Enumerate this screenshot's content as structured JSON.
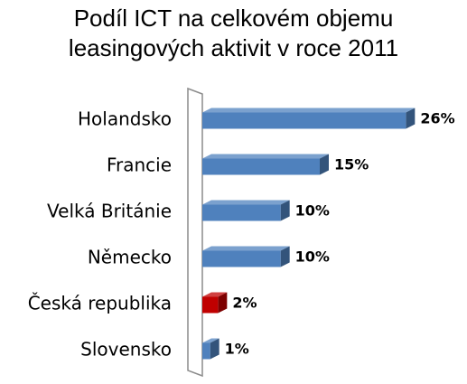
{
  "chart_data": {
    "type": "bar",
    "orientation": "horizontal",
    "title_lines": [
      "Podíl ICT na celkovém objemu",
      "leasingových aktivit v roce 2011"
    ],
    "categories": [
      "Holandsko",
      "Francie",
      "Velká Británie",
      "Německo",
      "Česká republika",
      "Slovensko"
    ],
    "values": [
      26,
      15,
      10,
      10,
      2,
      1
    ],
    "value_labels": [
      "26%",
      "15%",
      "10%",
      "10%",
      "2%",
      "1%"
    ],
    "value_unit": "%",
    "xlim": [
      0,
      27
    ],
    "grid": false,
    "legend": "none",
    "bar_colors": [
      "#4F81BD",
      "#4F81BD",
      "#4F81BD",
      "#4F81BD",
      "#C00000",
      "#4F81BD"
    ]
  }
}
